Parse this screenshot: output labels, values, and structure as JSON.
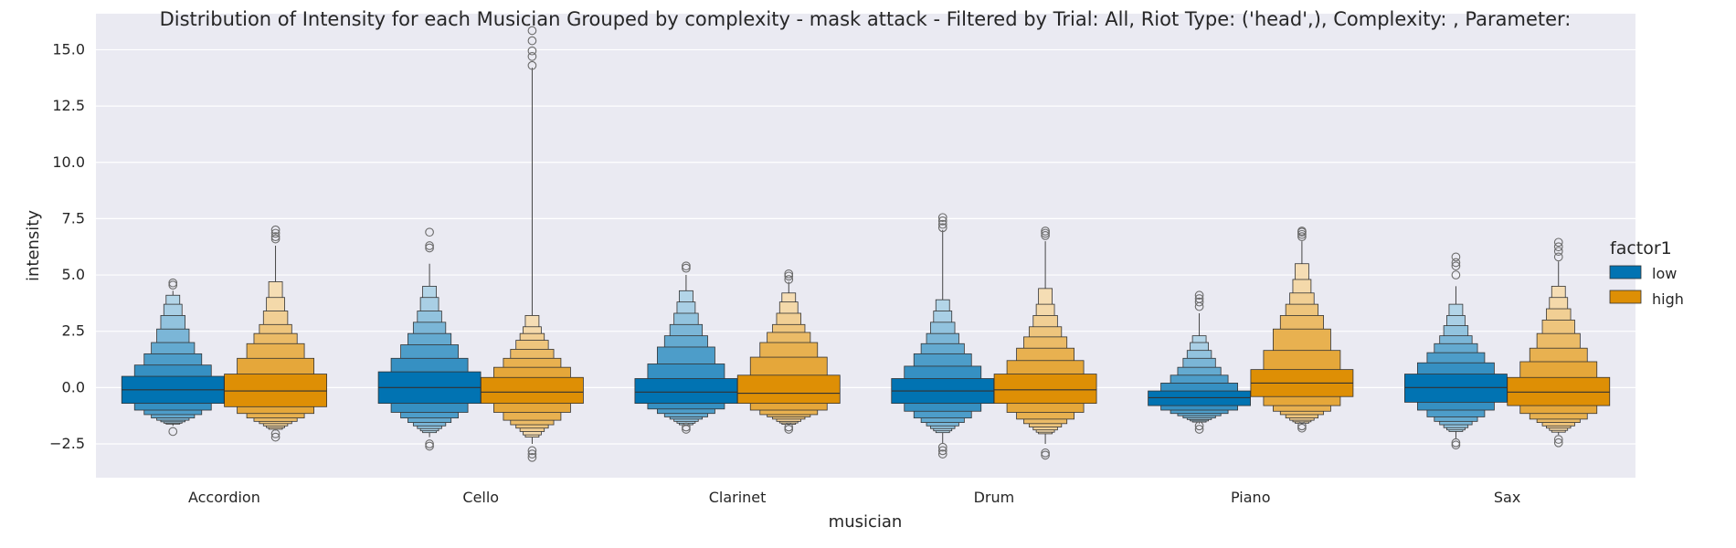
{
  "chart_data": {
    "type": "boxen",
    "title": "Distribution of Intensity for each Musician Grouped by complexity - mask attack - Filtered by Trial: All, Riot Type: ('head',), Complexity: , Parameter:",
    "xlabel": "musician",
    "ylabel": "intensity",
    "ylim": [
      -4.0,
      16.6
    ],
    "yticks": [
      -2.5,
      0.0,
      2.5,
      5.0,
      7.5,
      10.0,
      12.5,
      15.0
    ],
    "ytick_labels": [
      "−2.5",
      "0.0",
      "2.5",
      "5.0",
      "7.5",
      "10.0",
      "12.5",
      "15.0"
    ],
    "grid": true,
    "legend_position": "right",
    "legend_title": "factor1",
    "categories": [
      "Accordion",
      "Cello",
      "Clarinet",
      "Drum",
      "Piano",
      "Sax"
    ],
    "series": [
      {
        "name": "low",
        "color": "#0173b2",
        "groups": [
          {
            "median": -0.1,
            "levels": [
              [
                -0.7,
                0.5
              ],
              [
                -1.0,
                1.0
              ],
              [
                -1.2,
                1.5
              ],
              [
                -1.35,
                2.0
              ],
              [
                -1.45,
                2.6
              ],
              [
                -1.52,
                3.2
              ],
              [
                -1.58,
                3.7
              ],
              [
                -1.62,
                4.1
              ]
            ],
            "whisker": [
              -1.7,
              4.3
            ],
            "outliers": [
              -1.95,
              4.55,
              4.65
            ]
          },
          {
            "median": 0.0,
            "levels": [
              [
                -0.7,
                0.7
              ],
              [
                -1.1,
                1.3
              ],
              [
                -1.35,
                1.9
              ],
              [
                -1.55,
                2.4
              ],
              [
                -1.7,
                2.9
              ],
              [
                -1.82,
                3.4
              ],
              [
                -1.92,
                4.0
              ],
              [
                -2.0,
                4.5
              ]
            ],
            "whisker": [
              -2.2,
              5.5
            ],
            "outliers": [
              -2.5,
              -2.6,
              6.2,
              6.3,
              6.9
            ]
          },
          {
            "median": -0.2,
            "levels": [
              [
                -0.7,
                0.4
              ],
              [
                -0.95,
                1.05
              ],
              [
                -1.15,
                1.8
              ],
              [
                -1.3,
                2.3
              ],
              [
                -1.4,
                2.8
              ],
              [
                -1.5,
                3.3
              ],
              [
                -1.58,
                3.8
              ],
              [
                -1.65,
                4.3
              ]
            ],
            "whisker": [
              -1.7,
              5.0
            ],
            "outliers": [
              -1.75,
              -1.85,
              5.3,
              5.4
            ]
          },
          {
            "median": -0.15,
            "levels": [
              [
                -0.7,
                0.4
              ],
              [
                -1.05,
                0.95
              ],
              [
                -1.35,
                1.5
              ],
              [
                -1.55,
                1.95
              ],
              [
                -1.7,
                2.4
              ],
              [
                -1.82,
                2.9
              ],
              [
                -1.92,
                3.4
              ],
              [
                -2.0,
                3.9
              ]
            ],
            "whisker": [
              -2.5,
              7.0
            ],
            "outliers": [
              -2.65,
              -2.8,
              -2.95,
              7.1,
              7.25,
              7.4,
              7.55
            ]
          },
          {
            "median": -0.45,
            "levels": [
              [
                -0.8,
                -0.15
              ],
              [
                -1.0,
                0.2
              ],
              [
                -1.15,
                0.55
              ],
              [
                -1.25,
                0.9
              ],
              [
                -1.35,
                1.3
              ],
              [
                -1.42,
                1.65
              ],
              [
                -1.48,
                2.0
              ],
              [
                -1.53,
                2.3
              ]
            ],
            "whisker": [
              -1.6,
              3.3
            ],
            "outliers": [
              -1.7,
              -1.85,
              3.6,
              3.8,
              3.95,
              4.1
            ]
          },
          {
            "median": 0.0,
            "levels": [
              [
                -0.65,
                0.6
              ],
              [
                -1.0,
                1.1
              ],
              [
                -1.3,
                1.55
              ],
              [
                -1.5,
                1.95
              ],
              [
                -1.65,
                2.3
              ],
              [
                -1.78,
                2.75
              ],
              [
                -1.88,
                3.2
              ],
              [
                -1.95,
                3.7
              ]
            ],
            "whisker": [
              -2.3,
              4.5
            ],
            "outliers": [
              -2.45,
              -2.55,
              5.0,
              5.4,
              5.55,
              5.8
            ]
          }
        ]
      },
      {
        "name": "high",
        "color": "#de8f05",
        "groups": [
          {
            "median": -0.15,
            "levels": [
              [
                -0.85,
                0.6
              ],
              [
                -1.15,
                1.3
              ],
              [
                -1.35,
                1.95
              ],
              [
                -1.5,
                2.4
              ],
              [
                -1.6,
                2.8
              ],
              [
                -1.7,
                3.4
              ],
              [
                -1.78,
                4.0
              ],
              [
                -1.85,
                4.7
              ]
            ],
            "whisker": [
              -1.9,
              6.3
            ],
            "outliers": [
              -2.05,
              -2.2,
              6.6,
              6.7,
              6.85,
              7.0
            ]
          },
          {
            "median": -0.2,
            "levels": [
              [
                -0.7,
                0.45
              ],
              [
                -1.1,
                0.9
              ],
              [
                -1.45,
                1.3
              ],
              [
                -1.65,
                1.7
              ],
              [
                -1.8,
                2.1
              ],
              [
                -1.95,
                2.4
              ],
              [
                -2.1,
                2.7
              ],
              [
                -2.2,
                3.2
              ]
            ],
            "whisker": [
              -2.5,
              14.2
            ],
            "outliers": [
              -2.8,
              -2.95,
              -3.1,
              14.3,
              14.7,
              14.95,
              15.4,
              15.85
            ]
          },
          {
            "median": -0.25,
            "levels": [
              [
                -0.7,
                0.55
              ],
              [
                -1.0,
                1.35
              ],
              [
                -1.2,
                2.0
              ],
              [
                -1.3,
                2.45
              ],
              [
                -1.4,
                2.8
              ],
              [
                -1.5,
                3.3
              ],
              [
                -1.57,
                3.8
              ],
              [
                -1.63,
                4.2
              ]
            ],
            "whisker": [
              -1.7,
              4.7
            ],
            "outliers": [
              -1.75,
              -1.85,
              4.8,
              4.95,
              5.05
            ]
          },
          {
            "median": -0.1,
            "levels": [
              [
                -0.7,
                0.6
              ],
              [
                -1.1,
                1.2
              ],
              [
                -1.4,
                1.75
              ],
              [
                -1.6,
                2.25
              ],
              [
                -1.75,
                2.7
              ],
              [
                -1.88,
                3.2
              ],
              [
                -1.98,
                3.7
              ],
              [
                -2.05,
                4.4
              ]
            ],
            "whisker": [
              -2.5,
              6.5
            ],
            "outliers": [
              -2.9,
              -3.0,
              6.75,
              6.85,
              6.95
            ]
          },
          {
            "median": 0.2,
            "levels": [
              [
                -0.4,
                0.8
              ],
              [
                -0.8,
                1.65
              ],
              [
                -1.05,
                2.6
              ],
              [
                -1.2,
                3.2
              ],
              [
                -1.35,
                3.7
              ],
              [
                -1.45,
                4.2
              ],
              [
                -1.52,
                4.8
              ],
              [
                -1.58,
                5.5
              ]
            ],
            "whisker": [
              -1.65,
              6.5
            ],
            "outliers": [
              -1.7,
              -1.8,
              6.7,
              6.8,
              6.9,
              6.95
            ]
          },
          {
            "median": -0.2,
            "levels": [
              [
                -0.8,
                0.45
              ],
              [
                -1.15,
                1.15
              ],
              [
                -1.4,
                1.75
              ],
              [
                -1.55,
                2.4
              ],
              [
                -1.7,
                3.0
              ],
              [
                -1.8,
                3.5
              ],
              [
                -1.9,
                4.0
              ],
              [
                -1.98,
                4.5
              ]
            ],
            "whisker": [
              -2.1,
              5.6
            ],
            "outliers": [
              -2.3,
              -2.45,
              5.8,
              6.05,
              6.25,
              6.45
            ]
          }
        ]
      }
    ]
  }
}
